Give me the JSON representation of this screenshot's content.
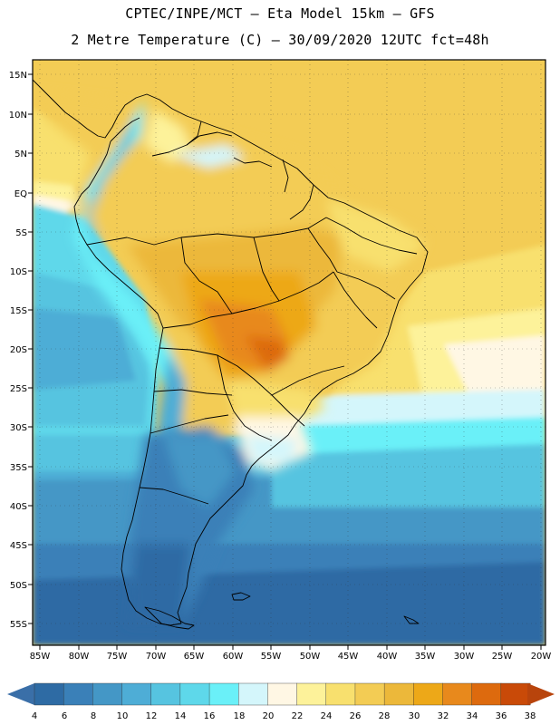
{
  "header": {
    "line1": "CPTEC/INPE/MCT —  Eta Model 15km — GFS",
    "line2": "2 Metre Temperature (C) — 30/09/2020 12UTC fct=48h"
  },
  "axes": {
    "lat_labels": [
      "15N",
      "10N",
      "5N",
      "EQ",
      "5S",
      "10S",
      "15S",
      "20S",
      "25S",
      "30S",
      "35S",
      "40S",
      "45S",
      "50S",
      "55S"
    ],
    "lon_labels": [
      "85W",
      "80W",
      "75W",
      "70W",
      "65W",
      "60W",
      "55W",
      "50W",
      "45W",
      "40W",
      "35W",
      "30W",
      "25W",
      "20W"
    ]
  },
  "colorbar": {
    "ticks": [
      "4",
      "6",
      "8",
      "10",
      "12",
      "14",
      "16",
      "18",
      "20",
      "22",
      "24",
      "26",
      "28",
      "30",
      "32",
      "34",
      "36",
      "38"
    ],
    "colors": [
      "#2e6ba4",
      "#3a80b8",
      "#4497c6",
      "#4eadd6",
      "#56c4e0",
      "#5ed8ea",
      "#6af0f8",
      "#d4f6fb",
      "#fff7e4",
      "#fdf29a",
      "#f8e06e",
      "#f3cc54",
      "#ecb83a",
      "#eda818",
      "#e8891c",
      "#dd6a0e",
      "#c94a08"
    ],
    "low_arrow_color": "#3a6fa8",
    "high_arrow_color": "#b8440c"
  },
  "colors": {
    "land_border": "#000000",
    "ocean_cold": "#2e6ba4",
    "ocean_warm": "#f3cc54"
  }
}
